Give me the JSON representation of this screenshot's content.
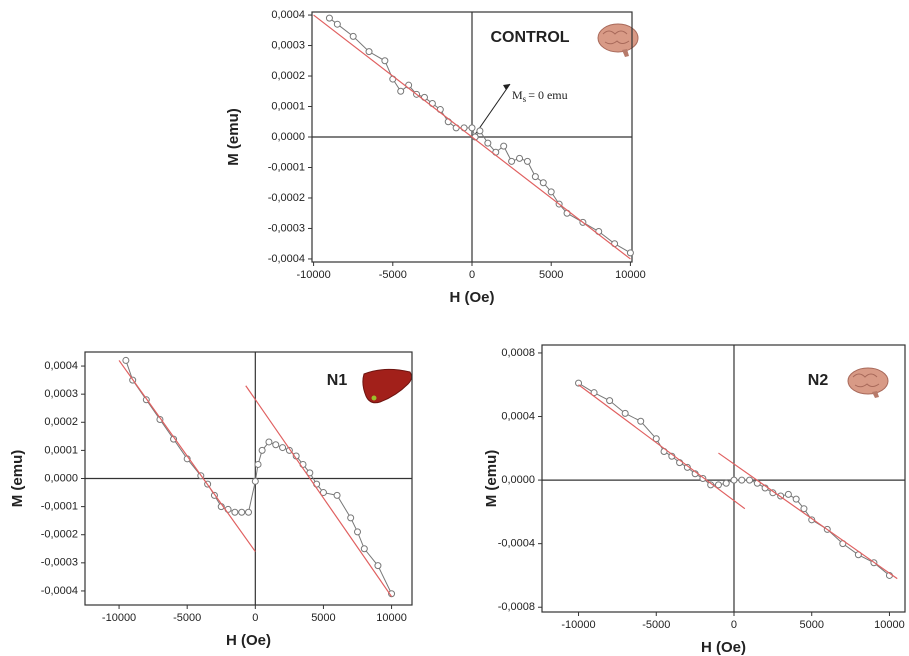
{
  "chart_data": [
    {
      "type": "line",
      "title": "CONTROL",
      "xlabel": "H (Oe)",
      "ylabel": "M (emu)",
      "annotation": {
        "text": "M",
        "subscript": "s",
        "suffix": "= 0 emu"
      },
      "xlim": [
        -10100,
        10100
      ],
      "ylim": [
        -0.00041,
        0.00041
      ],
      "xticks": [
        -10000,
        -5000,
        0,
        5000,
        10000
      ],
      "yticks": [
        {
          "value": -0.0004,
          "label": "-0,0004"
        },
        {
          "value": -0.0003,
          "label": "-0,0003"
        },
        {
          "value": -0.0002,
          "label": "-0,0002"
        },
        {
          "value": -0.0001,
          "label": "-0,0001"
        },
        {
          "value": 0,
          "label": "0,0000"
        },
        {
          "value": 0.0001,
          "label": "0,0001"
        },
        {
          "value": 0.0002,
          "label": "0,0002"
        },
        {
          "value": 0.0003,
          "label": "0,0003"
        },
        {
          "value": 0.0004,
          "label": "0,0004"
        }
      ],
      "series": [
        {
          "color": "#777777",
          "markers": true,
          "x": [
            -9000,
            -8500,
            -7500,
            -6500,
            -5500,
            -5000,
            -4500,
            -4000,
            -3500,
            -3000,
            -2500,
            -2000,
            -1500,
            -1000,
            -500,
            0,
            200,
            500,
            1000,
            1500,
            2000,
            2500,
            3000,
            3500,
            4000,
            4500,
            5000,
            5500,
            6000,
            7000,
            8000,
            9000,
            10000
          ],
          "values": [
            0.00039,
            0.00037,
            0.00033,
            0.00028,
            0.00025,
            0.00019,
            0.00015,
            0.00017,
            0.00014,
            0.00013,
            0.00011,
            9e-05,
            5e-05,
            3e-05,
            3e-05,
            3e-05,
            0,
            2e-05,
            -2e-05,
            -5e-05,
            -3e-05,
            -8e-05,
            -7e-05,
            -8e-05,
            -0.00013,
            -0.00015,
            -0.00018,
            -0.00022,
            -0.00025,
            -0.00028,
            -0.00031,
            -0.00035,
            -0.00038
          ]
        },
        {
          "color": "#e06060",
          "markers": false,
          "x": [
            -10000,
            10000
          ],
          "values": [
            0.0004,
            -0.0004
          ]
        }
      ]
    },
    {
      "type": "line",
      "title": "N1",
      "xlabel": "H (Oe)",
      "ylabel": "M (emu)",
      "xlim": [
        -12500,
        11500
      ],
      "ylim": [
        -0.00045,
        0.00045
      ],
      "xticks": [
        -10000,
        -5000,
        0,
        5000,
        10000
      ],
      "yticks": [
        {
          "value": -0.0004,
          "label": "-0,0004"
        },
        {
          "value": -0.0003,
          "label": "-0,0003"
        },
        {
          "value": -0.0002,
          "label": "-0,0002"
        },
        {
          "value": -0.0001,
          "label": "-0,0001"
        },
        {
          "value": 0,
          "label": "0,0000"
        },
        {
          "value": 0.0001,
          "label": "0,0001"
        },
        {
          "value": 0.0002,
          "label": "0,0002"
        },
        {
          "value": 0.0003,
          "label": "0,0003"
        },
        {
          "value": 0.0004,
          "label": "0,0004"
        }
      ],
      "series": [
        {
          "color": "#777777",
          "markers": true,
          "x": [
            -9500,
            -9000,
            -8000,
            -7000,
            -6000,
            -5000,
            -4000,
            -3500,
            -3000,
            -2500,
            -2000,
            -1500,
            -1000,
            -500,
            0,
            200,
            500,
            1000,
            1500,
            2000,
            2500,
            3000,
            3500,
            4000,
            4500,
            5000,
            6000,
            7000,
            7500,
            8000,
            9000,
            10000
          ],
          "values": [
            0.00042,
            0.00035,
            0.00028,
            0.00021,
            0.00014,
            7e-05,
            1e-05,
            -2e-05,
            -6e-05,
            -0.0001,
            -0.00011,
            -0.00012,
            -0.00012,
            -0.00012,
            -1e-05,
            5e-05,
            0.0001,
            0.00013,
            0.00012,
            0.00011,
            0.0001,
            8e-05,
            5e-05,
            2e-05,
            -2e-05,
            -5e-05,
            -6e-05,
            -0.00014,
            -0.00019,
            -0.00025,
            -0.00031,
            -0.00041
          ]
        },
        {
          "color": "#e06060",
          "markers": false,
          "x": [
            -10000,
            0
          ],
          "values": [
            0.00042,
            -0.00026
          ]
        },
        {
          "color": "#e06060",
          "markers": false,
          "x": [
            -700,
            10000
          ],
          "values": [
            0.00033,
            -0.00042
          ]
        }
      ]
    },
    {
      "type": "line",
      "title": "N2",
      "xlabel": "H (Oe)",
      "ylabel": "M (emu)",
      "xlim": [
        -12350,
        11000
      ],
      "ylim": [
        -0.00083,
        0.00085
      ],
      "xticks": [
        -10000,
        -5000,
        0,
        5000,
        10000
      ],
      "yticks": [
        {
          "value": -0.0008,
          "label": "-0,0008"
        },
        {
          "value": -0.0004,
          "label": "-0,0004"
        },
        {
          "value": 0,
          "label": "0,0000"
        },
        {
          "value": 0.0004,
          "label": "0,0004"
        },
        {
          "value": 0.0008,
          "label": "0,0008"
        }
      ],
      "series": [
        {
          "color": "#777777",
          "markers": true,
          "x": [
            -10000,
            -9000,
            -8000,
            -7000,
            -6000,
            -5000,
            -4500,
            -4000,
            -3500,
            -3000,
            -2500,
            -2000,
            -1500,
            -1000,
            -500,
            0,
            500,
            1000,
            1500,
            2000,
            2500,
            3000,
            3500,
            4000,
            4500,
            5000,
            6000,
            7000,
            8000,
            9000,
            10000
          ],
          "values": [
            0.00061,
            0.00055,
            0.0005,
            0.00042,
            0.00037,
            0.00026,
            0.00018,
            0.00015,
            0.00011,
            8e-05,
            4e-05,
            1e-05,
            -3e-05,
            -3e-05,
            -2e-05,
            0,
            0,
            0,
            -2e-05,
            -5e-05,
            -8e-05,
            -0.0001,
            -9e-05,
            -0.00012,
            -0.00018,
            -0.00025,
            -0.00031,
            -0.0004,
            -0.00047,
            -0.00052,
            -0.0006
          ]
        },
        {
          "color": "#e06060",
          "markers": false,
          "x": [
            -10000,
            700
          ],
          "values": [
            0.0006,
            -0.00018
          ]
        },
        {
          "color": "#e06060",
          "markers": false,
          "x": [
            -1000,
            10500
          ],
          "values": [
            0.00017,
            -0.00062
          ]
        }
      ]
    }
  ]
}
